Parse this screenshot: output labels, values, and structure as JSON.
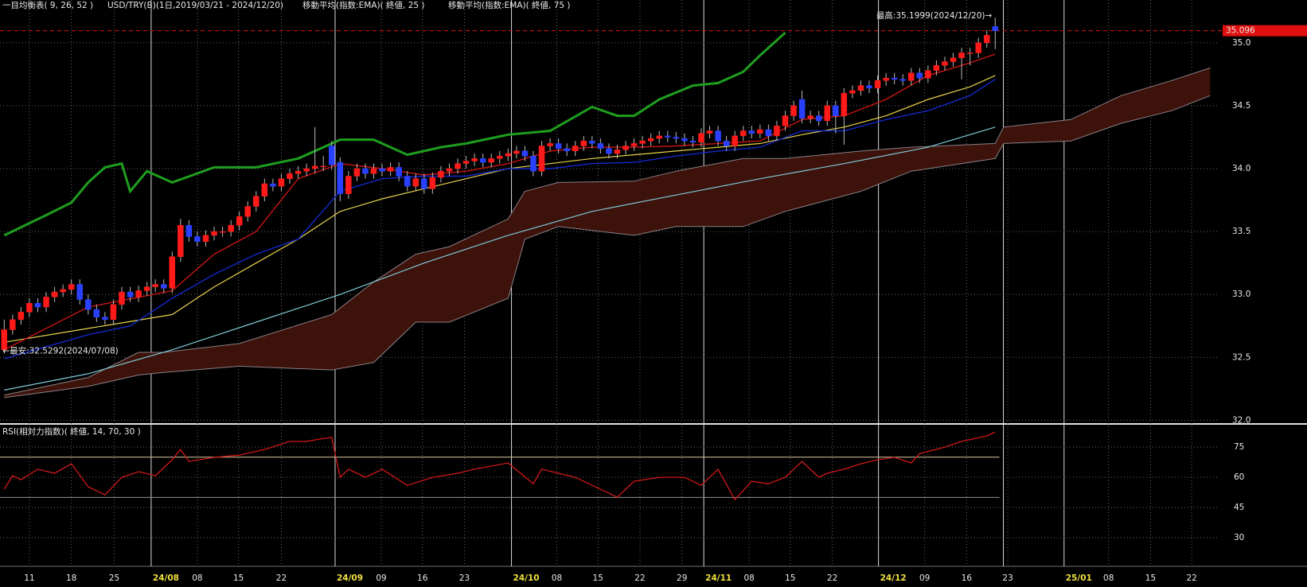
{
  "chart_data": [
    {
      "type": "candlestick",
      "titles": [
        "一目均衡表( 9, 26, 52 )",
        "USD/TRY(B)(1日,2019/03/21 - 2024/12/20)",
        "移動平均(指数:EMA)( 終値, 25 )",
        "移動平均(指数:EMA)( 終値, 75 )"
      ],
      "xlim": [
        -0.5,
        144.7
      ],
      "xticks": [
        {
          "value": 3.0,
          "label": "11"
        },
        {
          "value": 8.0,
          "label": "18"
        },
        {
          "value": 13.1,
          "label": "25"
        },
        {
          "value": 17.5,
          "label": "24/08"
        },
        {
          "value": 23.0,
          "label": "08"
        },
        {
          "value": 27.9,
          "label": "15"
        },
        {
          "value": 33.0,
          "label": "22"
        },
        {
          "value": 39.4,
          "label": "24/09"
        },
        {
          "value": 44.9,
          "label": "09"
        },
        {
          "value": 49.8,
          "label": "16"
        },
        {
          "value": 54.8,
          "label": "23"
        },
        {
          "value": 60.4,
          "label": "24/10"
        },
        {
          "value": 65.8,
          "label": "08"
        },
        {
          "value": 70.7,
          "label": "15"
        },
        {
          "value": 75.7,
          "label": "22"
        },
        {
          "value": 80.7,
          "label": "29"
        },
        {
          "value": 83.3,
          "label": "24/11"
        },
        {
          "value": 88.7,
          "label": "08"
        },
        {
          "value": 93.6,
          "label": "15"
        },
        {
          "value": 98.6,
          "label": "22"
        },
        {
          "value": 104.1,
          "label": "24/12"
        },
        {
          "value": 109.6,
          "label": "09"
        },
        {
          "value": 114.6,
          "label": "16"
        },
        {
          "value": 119.5,
          "label": "23"
        },
        {
          "value": 126.2,
          "label": "25/01"
        },
        {
          "value": 131.5,
          "label": "08"
        },
        {
          "value": 136.5,
          "label": "15"
        },
        {
          "value": 141.4,
          "label": "22"
        }
      ],
      "ylim": [
        31.99,
        35.34
      ],
      "yticks": [
        {
          "value": 32,
          "label": "32.0"
        },
        32.5,
        {
          "value": 33,
          "label": "33.0"
        },
        33.5,
        {
          "value": 34,
          "label": "34.0"
        },
        34.5,
        {
          "value": 35,
          "label": "35.0"
        }
      ],
      "grid": true,
      "candles": {
        "up_color": "#ff1a1a",
        "down_color": "#2a40ff",
        "wick_color": "#b8b8b8",
        "open": [
          32.56,
          32.72,
          32.8,
          32.86,
          32.93,
          32.9,
          32.98,
          33.02,
          33.04,
          33.08,
          32.96,
          32.88,
          32.82,
          32.8,
          32.92,
          33.02,
          32.98,
          33.03,
          33.06,
          33.08,
          33.05,
          33.3,
          33.55,
          33.46,
          33.42,
          33.47,
          33.5,
          33.5,
          33.55,
          33.62,
          33.7,
          33.78,
          33.88,
          33.86,
          33.92,
          33.96,
          33.98,
          34.0,
          34.02,
          34.18,
          34.05,
          33.8,
          33.94,
          34.0,
          33.96,
          34.0,
          33.98,
          34.01,
          33.94,
          33.86,
          33.92,
          33.84,
          33.93,
          33.98,
          34.0,
          34.04,
          34.06,
          34.08,
          34.05,
          34.08,
          34.1,
          34.12,
          34.14,
          34.1,
          33.98,
          34.18,
          34.2,
          34.16,
          34.14,
          34.18,
          34.22,
          34.2,
          34.16,
          34.12,
          34.15,
          34.18,
          34.2,
          34.22,
          34.24,
          34.26,
          34.25,
          34.24,
          34.22,
          34.21,
          34.28,
          34.3,
          34.22,
          34.18,
          34.26,
          34.3,
          34.28,
          34.31,
          34.26,
          34.34,
          34.42,
          34.55,
          34.4,
          34.42,
          34.38,
          34.5,
          34.42,
          34.6,
          34.62,
          34.66,
          34.64,
          34.7,
          34.72,
          34.71,
          34.7,
          34.76,
          34.72,
          34.78,
          34.82,
          34.85,
          34.88,
          34.92,
          34.92,
          35.0,
          35.13
        ],
        "high": [
          32.8,
          32.84,
          32.9,
          32.97,
          32.97,
          33.02,
          33.06,
          33.08,
          33.12,
          33.12,
          33.0,
          32.92,
          32.86,
          32.96,
          33.06,
          33.06,
          33.07,
          33.1,
          33.12,
          33.12,
          33.34,
          33.6,
          33.59,
          33.5,
          33.51,
          33.54,
          33.54,
          33.59,
          33.66,
          33.74,
          33.82,
          33.92,
          33.92,
          33.96,
          34.0,
          34.02,
          34.04,
          34.33,
          34.1,
          34.22,
          34.09,
          33.98,
          34.04,
          34.04,
          34.04,
          34.04,
          34.05,
          34.05,
          33.98,
          33.96,
          33.96,
          33.97,
          34.02,
          34.04,
          34.08,
          34.1,
          34.12,
          34.12,
          34.12,
          34.14,
          34.16,
          34.18,
          34.18,
          34.14,
          34.22,
          34.24,
          34.24,
          34.2,
          34.22,
          34.26,
          34.26,
          34.24,
          34.2,
          34.19,
          34.22,
          34.24,
          34.26,
          34.28,
          34.3,
          34.3,
          34.29,
          34.28,
          34.26,
          34.32,
          34.34,
          34.34,
          34.26,
          34.3,
          34.34,
          34.34,
          34.35,
          34.35,
          34.38,
          34.46,
          34.54,
          34.62,
          34.46,
          34.46,
          34.54,
          34.54,
          34.64,
          34.66,
          34.7,
          34.7,
          34.74,
          34.76,
          34.76,
          34.75,
          34.8,
          34.8,
          34.82,
          34.86,
          34.89,
          34.92,
          34.96,
          34.96,
          35.04,
          35.1,
          35.1999
        ],
        "low": [
          32.53,
          32.68,
          32.76,
          32.82,
          32.86,
          32.86,
          32.94,
          32.98,
          33.0,
          32.92,
          32.84,
          32.78,
          32.76,
          32.76,
          32.88,
          32.94,
          32.94,
          32.99,
          33.02,
          33.01,
          33.01,
          33.26,
          33.42,
          33.38,
          33.38,
          33.43,
          33.46,
          33.46,
          33.51,
          33.58,
          33.66,
          33.74,
          33.82,
          33.82,
          33.88,
          33.92,
          33.94,
          33.96,
          33.98,
          33.99,
          33.74,
          33.76,
          33.9,
          33.92,
          33.92,
          33.94,
          33.94,
          33.9,
          33.82,
          33.82,
          33.8,
          33.8,
          33.89,
          33.94,
          33.96,
          34.0,
          34.02,
          34.01,
          34.01,
          34.04,
          34.06,
          34.08,
          34.06,
          33.94,
          33.94,
          34.14,
          34.12,
          34.1,
          34.1,
          34.14,
          34.16,
          34.12,
          34.08,
          34.08,
          34.11,
          34.14,
          34.16,
          34.18,
          34.2,
          34.21,
          34.2,
          34.18,
          34.17,
          34.17,
          34.24,
          34.18,
          34.14,
          34.14,
          34.22,
          34.24,
          34.24,
          34.22,
          34.22,
          34.3,
          34.38,
          34.36,
          34.36,
          34.34,
          34.34,
          34.28,
          34.19,
          34.56,
          34.58,
          34.6,
          34.6,
          34.66,
          34.67,
          34.66,
          34.66,
          34.68,
          34.68,
          34.74,
          34.78,
          34.81,
          34.71,
          34.82,
          34.88,
          34.96,
          34.95
        ],
        "close": [
          32.72,
          32.8,
          32.86,
          32.93,
          32.9,
          32.98,
          33.02,
          33.04,
          33.08,
          32.96,
          32.88,
          32.82,
          32.8,
          32.92,
          33.02,
          32.98,
          33.03,
          33.06,
          33.08,
          33.05,
          33.3,
          33.55,
          33.46,
          33.42,
          33.47,
          33.5,
          33.5,
          33.55,
          33.62,
          33.7,
          33.78,
          33.88,
          33.86,
          33.92,
          33.96,
          33.98,
          34.0,
          34.02,
          34.02,
          34.03,
          33.8,
          33.94,
          34.0,
          33.96,
          34.0,
          33.98,
          34.01,
          33.94,
          33.86,
          33.92,
          33.84,
          33.93,
          33.98,
          34.0,
          34.04,
          34.06,
          34.08,
          34.05,
          34.08,
          34.1,
          34.12,
          34.14,
          34.1,
          33.98,
          34.18,
          34.2,
          34.16,
          34.14,
          34.18,
          34.22,
          34.2,
          34.16,
          34.12,
          34.15,
          34.18,
          34.2,
          34.22,
          34.24,
          34.26,
          34.25,
          34.24,
          34.22,
          34.21,
          34.28,
          34.3,
          34.22,
          34.18,
          34.26,
          34.3,
          34.28,
          34.31,
          34.26,
          34.34,
          34.42,
          34.5,
          34.4,
          34.42,
          34.38,
          34.5,
          34.42,
          34.6,
          34.62,
          34.66,
          34.64,
          34.7,
          34.72,
          34.71,
          34.7,
          34.76,
          34.72,
          34.78,
          34.82,
          34.85,
          34.88,
          34.92,
          34.92,
          35.0,
          35.06,
          35.096
        ]
      },
      "cloud": {
        "fill": "#3c120a",
        "edge_color": "#8a7f86",
        "x": [
          0,
          10,
          16,
          19,
          28,
          39,
          44,
          49,
          53,
          60,
          62,
          66,
          75,
          80,
          88,
          93,
          102,
          108,
          118,
          119,
          127,
          133,
          139,
          143.6
        ],
        "span_a": [
          32.2,
          32.34,
          32.54,
          32.54,
          32.61,
          32.84,
          33.1,
          33.32,
          33.38,
          33.6,
          33.82,
          33.89,
          33.9,
          33.98,
          34.08,
          34.08,
          34.14,
          34.17,
          34.2,
          34.33,
          34.39,
          34.58,
          34.7,
          34.8
        ],
        "span_b": [
          32.18,
          32.27,
          32.36,
          32.38,
          32.43,
          32.4,
          32.46,
          32.78,
          32.78,
          32.97,
          33.44,
          33.54,
          33.47,
          33.54,
          33.54,
          33.66,
          33.82,
          33.98,
          34.08,
          34.2,
          34.22,
          34.36,
          34.46,
          34.58
        ]
      },
      "lines": [
        {
          "color": "#7fc8d8",
          "width": 1.2,
          "x": [
            0,
            10,
            20,
            30,
            40,
            50,
            60,
            70,
            80,
            90,
            100,
            110,
            118
          ],
          "values": [
            32.24,
            32.37,
            32.56,
            32.78,
            33.0,
            33.25,
            33.47,
            33.66,
            33.79,
            33.92,
            34.04,
            34.17,
            34.33
          ]
        },
        {
          "color": "#e6d24a",
          "width": 1.2,
          "x": [
            0,
            10,
            20,
            25,
            30,
            35,
            40,
            45,
            50,
            55,
            60,
            65,
            70,
            75,
            80,
            85,
            90,
            95,
            100,
            105,
            110,
            115,
            118
          ],
          "values": [
            32.62,
            32.73,
            32.84,
            33.06,
            33.25,
            33.44,
            33.66,
            33.76,
            33.84,
            33.92,
            34.0,
            34.04,
            34.08,
            34.11,
            34.14,
            34.17,
            34.2,
            34.27,
            34.33,
            34.42,
            34.55,
            34.65,
            34.74
          ]
        },
        {
          "color": "#1428c8",
          "width": 1.4,
          "x": [
            0,
            10,
            15,
            20,
            25,
            30,
            35,
            40,
            45,
            50,
            55,
            60,
            65,
            70,
            75,
            80,
            85,
            90,
            95,
            100,
            105,
            110,
            115,
            118
          ],
          "values": [
            32.49,
            32.68,
            32.75,
            32.97,
            33.16,
            33.32,
            33.44,
            33.82,
            33.92,
            33.94,
            33.94,
            34.0,
            34.0,
            34.04,
            34.05,
            34.1,
            34.14,
            34.17,
            34.3,
            34.3,
            34.39,
            34.46,
            34.58,
            34.71
          ]
        },
        {
          "color": "#c81414",
          "width": 1.4,
          "x": [
            0,
            10,
            20,
            25,
            30,
            35,
            40,
            45,
            50,
            55,
            60,
            65,
            70,
            75,
            80,
            85,
            90,
            95,
            100,
            105,
            110,
            115,
            118
          ],
          "values": [
            32.56,
            32.9,
            33.03,
            33.32,
            33.5,
            33.92,
            34.04,
            34.0,
            33.95,
            33.98,
            34.04,
            34.14,
            34.17,
            34.17,
            34.18,
            34.2,
            34.22,
            34.39,
            34.42,
            34.55,
            34.74,
            34.84,
            34.91
          ]
        },
        {
          "color": "#1e9e1e",
          "width": 3,
          "x": [
            0,
            5,
            8,
            10,
            12,
            14,
            15,
            17,
            20,
            25,
            30,
            35,
            38,
            40,
            44,
            48,
            52,
            55,
            60,
            65,
            70,
            73,
            75,
            78,
            82,
            85,
            88,
            90,
            93
          ],
          "values": [
            33.47,
            33.63,
            33.73,
            33.89,
            34.01,
            34.04,
            33.82,
            33.98,
            33.89,
            34.01,
            34.01,
            34.08,
            34.17,
            34.23,
            34.23,
            34.11,
            34.17,
            34.2,
            34.27,
            34.3,
            34.49,
            34.42,
            34.42,
            34.55,
            34.66,
            34.68,
            34.77,
            34.9,
            35.08
          ]
        }
      ],
      "last_price": 35.096,
      "last_price_color": "#e01010",
      "annotations": [
        "最高:35.1999(2024/12/20)→",
        "←最安:32.5292(2024/07/08)"
      ]
    },
    {
      "type": "line",
      "title": "RSI(相対力指数)( 終値, 14, 70, 30 )",
      "color": "#d01818",
      "ylim": [
        15.8,
        84.9
      ],
      "yticks": [
        30,
        45,
        60,
        75
      ],
      "levels": [
        70,
        50
      ],
      "level_colors": [
        "#d8c8a0",
        "#909090"
      ],
      "x": [
        0,
        1,
        2,
        4,
        6,
        8,
        10,
        12,
        14,
        16,
        18,
        20,
        21,
        22,
        25,
        28,
        31,
        34,
        36,
        37,
        39,
        40,
        41,
        43,
        45,
        48,
        51,
        54,
        56,
        60,
        63,
        64,
        68,
        73,
        75,
        78,
        81,
        83,
        85,
        87,
        89,
        91,
        93,
        95,
        97,
        98,
        100,
        102,
        104,
        106,
        108,
        109,
        112,
        114,
        117,
        118
      ],
      "values": [
        54.1,
        60.8,
        58.8,
        64.0,
        62.0,
        66.7,
        55.3,
        51.3,
        60.0,
        62.8,
        60.8,
        68.7,
        73.8,
        67.9,
        69.9,
        71.0,
        73.8,
        77.8,
        77.8,
        78.6,
        79.8,
        60.0,
        64.0,
        60.0,
        64.0,
        56.0,
        60.0,
        62.0,
        64.0,
        67.1,
        56.8,
        64.0,
        60.0,
        50.1,
        58.0,
        60.0,
        60.0,
        56.0,
        64.0,
        48.9,
        58.0,
        56.8,
        60.0,
        67.9,
        60.0,
        62.0,
        64.0,
        66.7,
        68.7,
        69.9,
        67.1,
        71.8,
        75.0,
        77.8,
        80.5,
        82.5
      ]
    }
  ]
}
